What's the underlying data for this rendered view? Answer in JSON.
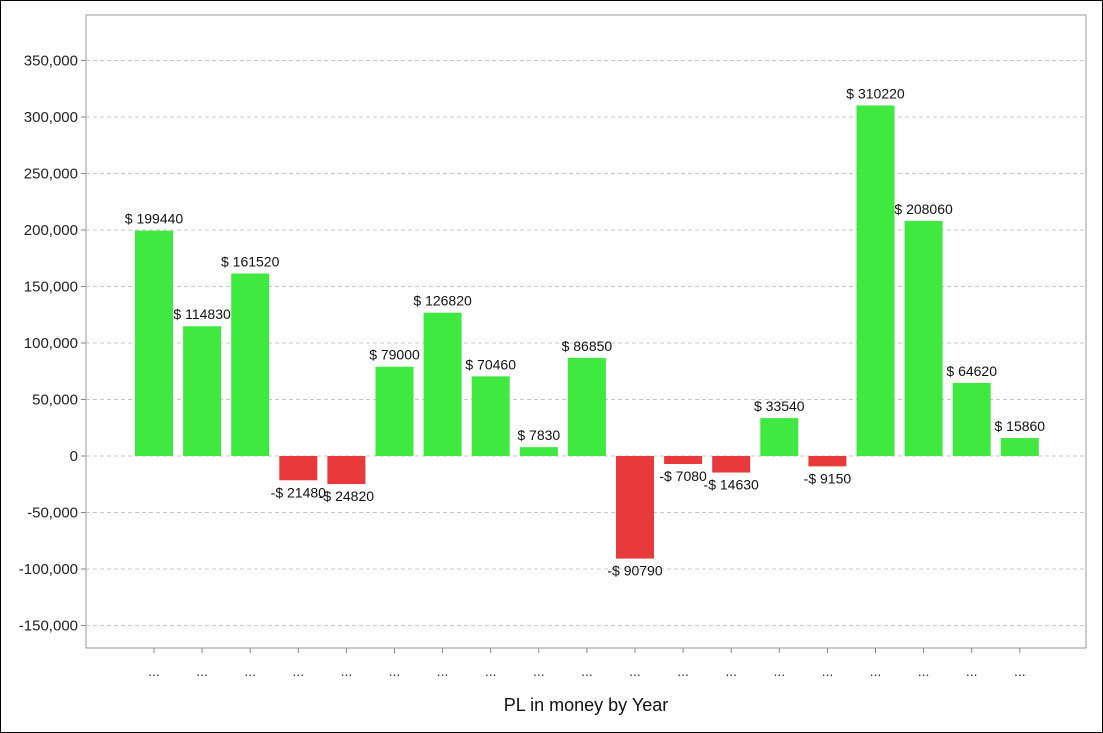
{
  "chart_data": {
    "type": "bar",
    "title": "",
    "xlabel": "PL in money by Year",
    "ylabel": "",
    "ylim": [
      -170000,
      390000
    ],
    "yticks": [
      -150000,
      -100000,
      -50000,
      0,
      50000,
      100000,
      150000,
      200000,
      250000,
      300000,
      350000
    ],
    "ytick_labels": [
      "-150,000",
      "-100,000",
      "-50,000",
      "0",
      "50,000",
      "100,000",
      "150,000",
      "200,000",
      "250,000",
      "300,000",
      "350,000"
    ],
    "grid": "horizontal dashed",
    "categories": [
      "...",
      "...",
      "...",
      "...",
      "...",
      "...",
      "...",
      "...",
      "...",
      "...",
      "...",
      "...",
      "...",
      "...",
      "...",
      "...",
      "...",
      "...",
      "..."
    ],
    "values": [
      199440,
      114830,
      161520,
      -21480,
      -24820,
      79000,
      126820,
      70460,
      7830,
      86850,
      -90790,
      -7080,
      -14630,
      33540,
      -9150,
      310220,
      208060,
      64620,
      15860
    ],
    "data_labels": [
      "$ 199440",
      "$ 114830",
      "$ 161520",
      "-$ 21480",
      "-$ 24820",
      "$ 79000",
      "$ 126820",
      "$ 70460",
      "$ 7830",
      "$ 86850",
      "-$ 90790",
      "-$ 7080",
      "-$ 14630",
      "$ 33540",
      "-$ 9150",
      "$ 310220",
      "$ 208060",
      "$ 64620",
      "$ 15860"
    ],
    "colors": {
      "positive": "#3fe93f",
      "negative": "#e8393b",
      "grid": "#c8c8c8",
      "axis": "#888888"
    }
  }
}
